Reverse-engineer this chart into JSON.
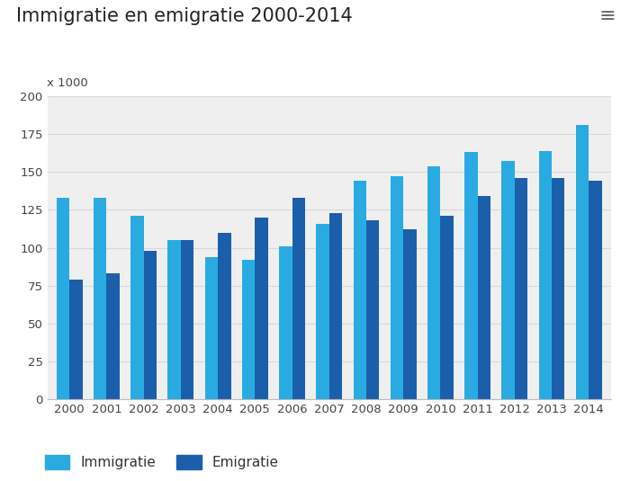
{
  "title": "Immigratie en emigratie 2000-2014",
  "ylabel": "x 1000",
  "years": [
    2000,
    2001,
    2002,
    2003,
    2004,
    2005,
    2006,
    2007,
    2008,
    2009,
    2010,
    2011,
    2012,
    2013,
    2014
  ],
  "immigratie": [
    133,
    133,
    121,
    105,
    94,
    92,
    101,
    116,
    144,
    147,
    154,
    163,
    157,
    164,
    181
  ],
  "emigratie": [
    79,
    83,
    98,
    105,
    110,
    120,
    133,
    123,
    118,
    112,
    121,
    134,
    146,
    146,
    144
  ],
  "color_immigratie": "#29ABE2",
  "color_emigratie": "#1B5FAA",
  "background_chart": "#efefef",
  "background_fig": "#ffffff",
  "ylim": [
    0,
    200
  ],
  "yticks": [
    0,
    25,
    50,
    75,
    100,
    125,
    150,
    175,
    200
  ],
  "legend_immigratie": "Immigratie",
  "legend_emigratie": "Emigratie",
  "title_fontsize": 15,
  "axis_fontsize": 9.5,
  "legend_fontsize": 11,
  "bar_width": 0.35,
  "grid_color": "#d8d8d8"
}
